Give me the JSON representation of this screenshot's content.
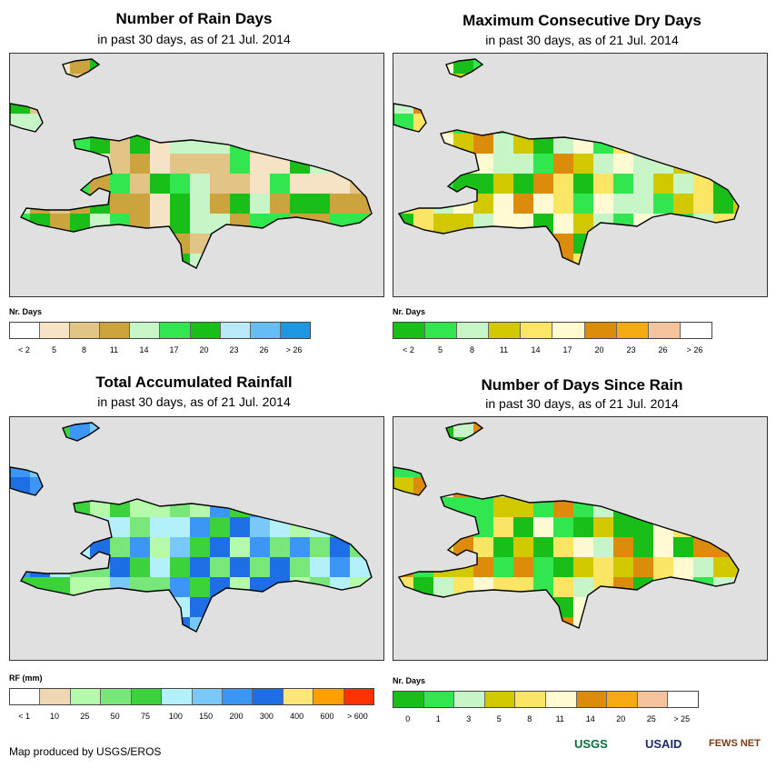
{
  "panels": [
    {
      "id": "rain-days",
      "title": "Number of Rain Days",
      "subtitle": "in past 30 days, as of 21 Jul. 2014",
      "legend": {
        "title": "Nr. Days",
        "colors": [
          "#ffffff",
          "#f6e2c4",
          "#e1c486",
          "#cca43e",
          "#c8f5c8",
          "#32e650",
          "#19be19",
          "#b9e9f6",
          "#64bef5",
          "#1e96e1"
        ],
        "labels": [
          "< 2",
          "5",
          "8",
          "11",
          "14",
          "17",
          "20",
          "23",
          "26",
          "> 26"
        ]
      }
    },
    {
      "id": "max-dry-days",
      "title": "Maximum Consecutive Dry Days",
      "subtitle": "in past 30 days, as of 21 Jul. 2014",
      "legend": {
        "title": "Nr. Days",
        "colors": [
          "#19be19",
          "#32e650",
          "#c8f5c8",
          "#d2c800",
          "#fae664",
          "#fffad2",
          "#dc8c0a",
          "#f5aa14",
          "#f5c39b",
          "#ffffff"
        ],
        "labels": [
          "< 2",
          "5",
          "8",
          "11",
          "14",
          "17",
          "20",
          "23",
          "26",
          "> 26"
        ]
      }
    },
    {
      "id": "total-rainfall",
      "title": "Total Accumulated Rainfall",
      "subtitle": "in past 30 days, as of 21 Jul. 2014",
      "legend": {
        "title": "RF (mm)",
        "colors": [
          "#ffffff",
          "#f0d7b4",
          "#b4faaa",
          "#78e678",
          "#3cd23c",
          "#b4f0fa",
          "#78c8fa",
          "#3c96f5",
          "#1e6ee6",
          "#ffe678",
          "#ffa000",
          "#ff3200"
        ],
        "labels": [
          "< 1",
          "10",
          "25",
          "50",
          "75",
          "100",
          "150",
          "200",
          "300",
          "400",
          "600",
          "> 600"
        ]
      }
    },
    {
      "id": "days-since-rain",
      "title": "Number of Days Since Rain",
      "subtitle": "in past 30 days, as of 21 Jul. 2014",
      "legend": {
        "title": "Nr. Days",
        "colors": [
          "#19be19",
          "#32e650",
          "#c8f5c8",
          "#d2c800",
          "#fae664",
          "#fffad2",
          "#dc8c0a",
          "#f5aa14",
          "#f5c39b",
          "#ffffff"
        ],
        "labels": [
          "0",
          "1",
          "3",
          "5",
          "8",
          "11",
          "14",
          "20",
          "25",
          "> 25"
        ]
      }
    }
  ],
  "footer": {
    "credit": "Map produced by USGS/EROS",
    "logos": [
      "USGS",
      "USAID",
      "FEWS NET"
    ]
  },
  "colors": {
    "map_background": "#e0e0e0",
    "coastline": "#000000"
  }
}
